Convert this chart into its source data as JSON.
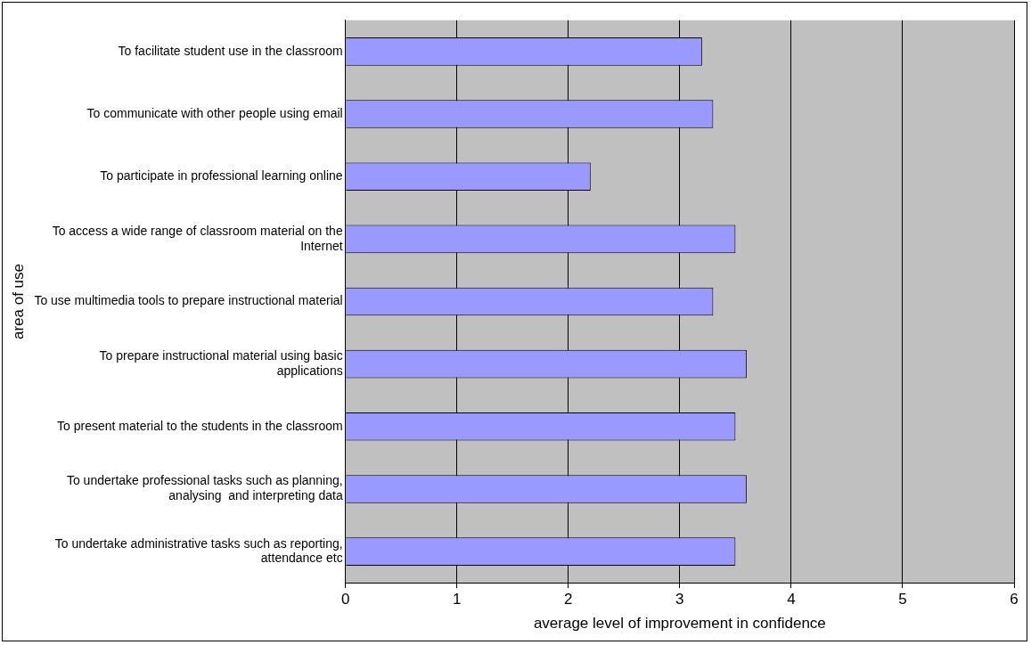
{
  "chart_data": {
    "type": "bar",
    "orientation": "horizontal",
    "xlabel": "average level of improvement in confidence",
    "ylabel": "area of use",
    "categories": [
      "To facilitate student use in the classroom",
      "To communicate with other people using email",
      "To participate in professional learning online",
      "To access a wide range of classroom material on the Internet",
      "To use multimedia tools to prepare instructional material",
      "To prepare instructional material using basic applications",
      "To present material to the students in the classroom",
      "To undertake professional tasks such as planning, analysing  and interpreting data",
      "To undertake administrative tasks such as reporting, attendance etc"
    ],
    "values": [
      3.2,
      3.3,
      2.2,
      3.5,
      3.3,
      3.6,
      3.5,
      3.6,
      3.5
    ],
    "color": "#9999ff",
    "xlim": [
      0,
      6
    ],
    "xticks": [
      0,
      1,
      2,
      3,
      4,
      5,
      6
    ],
    "grid": "x",
    "legend": false
  }
}
